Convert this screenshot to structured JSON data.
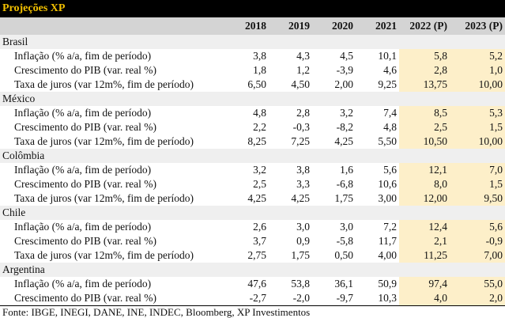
{
  "title": "Projeções XP",
  "columns": [
    "2018",
    "2019",
    "2020",
    "2021",
    "2022 (P)",
    "2023 (P)"
  ],
  "projection_highlight_color": "#fdefc9",
  "title_text_color": "#f2c000",
  "groups": [
    {
      "country": "Brasil",
      "rows": [
        {
          "label": "Inflação (% a/a, fim de período)",
          "values": [
            "3,8",
            "4,3",
            "4,5",
            "10,1",
            "5,8",
            "5,2"
          ]
        },
        {
          "label": "Crescimento do PIB (var. real %)",
          "values": [
            "1,8",
            "1,2",
            "-3,9",
            "4,6",
            "2,8",
            "1,0"
          ]
        },
        {
          "label": "Taxa de juros (var 12m%, fim de período)",
          "values": [
            "6,50",
            "4,50",
            "2,00",
            "9,25",
            "13,75",
            "10,00"
          ]
        }
      ]
    },
    {
      "country": "México",
      "rows": [
        {
          "label": "Inflação (% a/a, fim de período)",
          "values": [
            "4,8",
            "2,8",
            "3,2",
            "7,4",
            "8,5",
            "5,3"
          ]
        },
        {
          "label": "Crescimento do PIB (var. real %)",
          "values": [
            "2,2",
            "-0,3",
            "-8,2",
            "4,8",
            "2,5",
            "1,5"
          ]
        },
        {
          "label": "Taxa de juros (var 12m%, fim de período)",
          "values": [
            "8,25",
            "7,25",
            "4,25",
            "5,50",
            "10,50",
            "10,00"
          ]
        }
      ]
    },
    {
      "country": "Colômbia",
      "rows": [
        {
          "label": "Inflação (% a/a, fim de período)",
          "values": [
            "3,2",
            "3,8",
            "1,6",
            "5,6",
            "12,1",
            "7,0"
          ]
        },
        {
          "label": "Crescimento do PIB (var. real %)",
          "values": [
            "2,5",
            "3,3",
            "-6,8",
            "10,6",
            "8,0",
            "1,5"
          ]
        },
        {
          "label": "Taxa de juros (var 12m%, fim de período)",
          "values": [
            "4,25",
            "4,25",
            "1,75",
            "3,00",
            "12,00",
            "9,50"
          ]
        }
      ]
    },
    {
      "country": "Chile",
      "rows": [
        {
          "label": "Inflação (% a/a, fim de período)",
          "values": [
            "2,6",
            "3,0",
            "3,0",
            "7,2",
            "12,4",
            "5,6"
          ]
        },
        {
          "label": "Crescimento do PIB (var. real %)",
          "values": [
            "3,7",
            "0,9",
            "-5,8",
            "11,7",
            "2,1",
            "-0,9"
          ]
        },
        {
          "label": "Taxa de juros (var 12m%, fim de período)",
          "values": [
            "2,75",
            "1,75",
            "0,50",
            "4,00",
            "11,25",
            "7,00"
          ]
        }
      ]
    },
    {
      "country": "Argentina",
      "rows": [
        {
          "label": "Inflação (% a/a, fim de período)",
          "values": [
            "47,6",
            "53,8",
            "36,1",
            "50,9",
            "97,4",
            "55,0"
          ]
        },
        {
          "label": "Crescimento do PIB (var. real %)",
          "values": [
            "-2,7",
            "-2,0",
            "-9,7",
            "10,3",
            "4,0",
            "2,0"
          ]
        }
      ]
    }
  ],
  "footer": "Fonte: IBGE, INEGI, DANE, INE, INDEC, Bloomberg, XP Investimentos"
}
